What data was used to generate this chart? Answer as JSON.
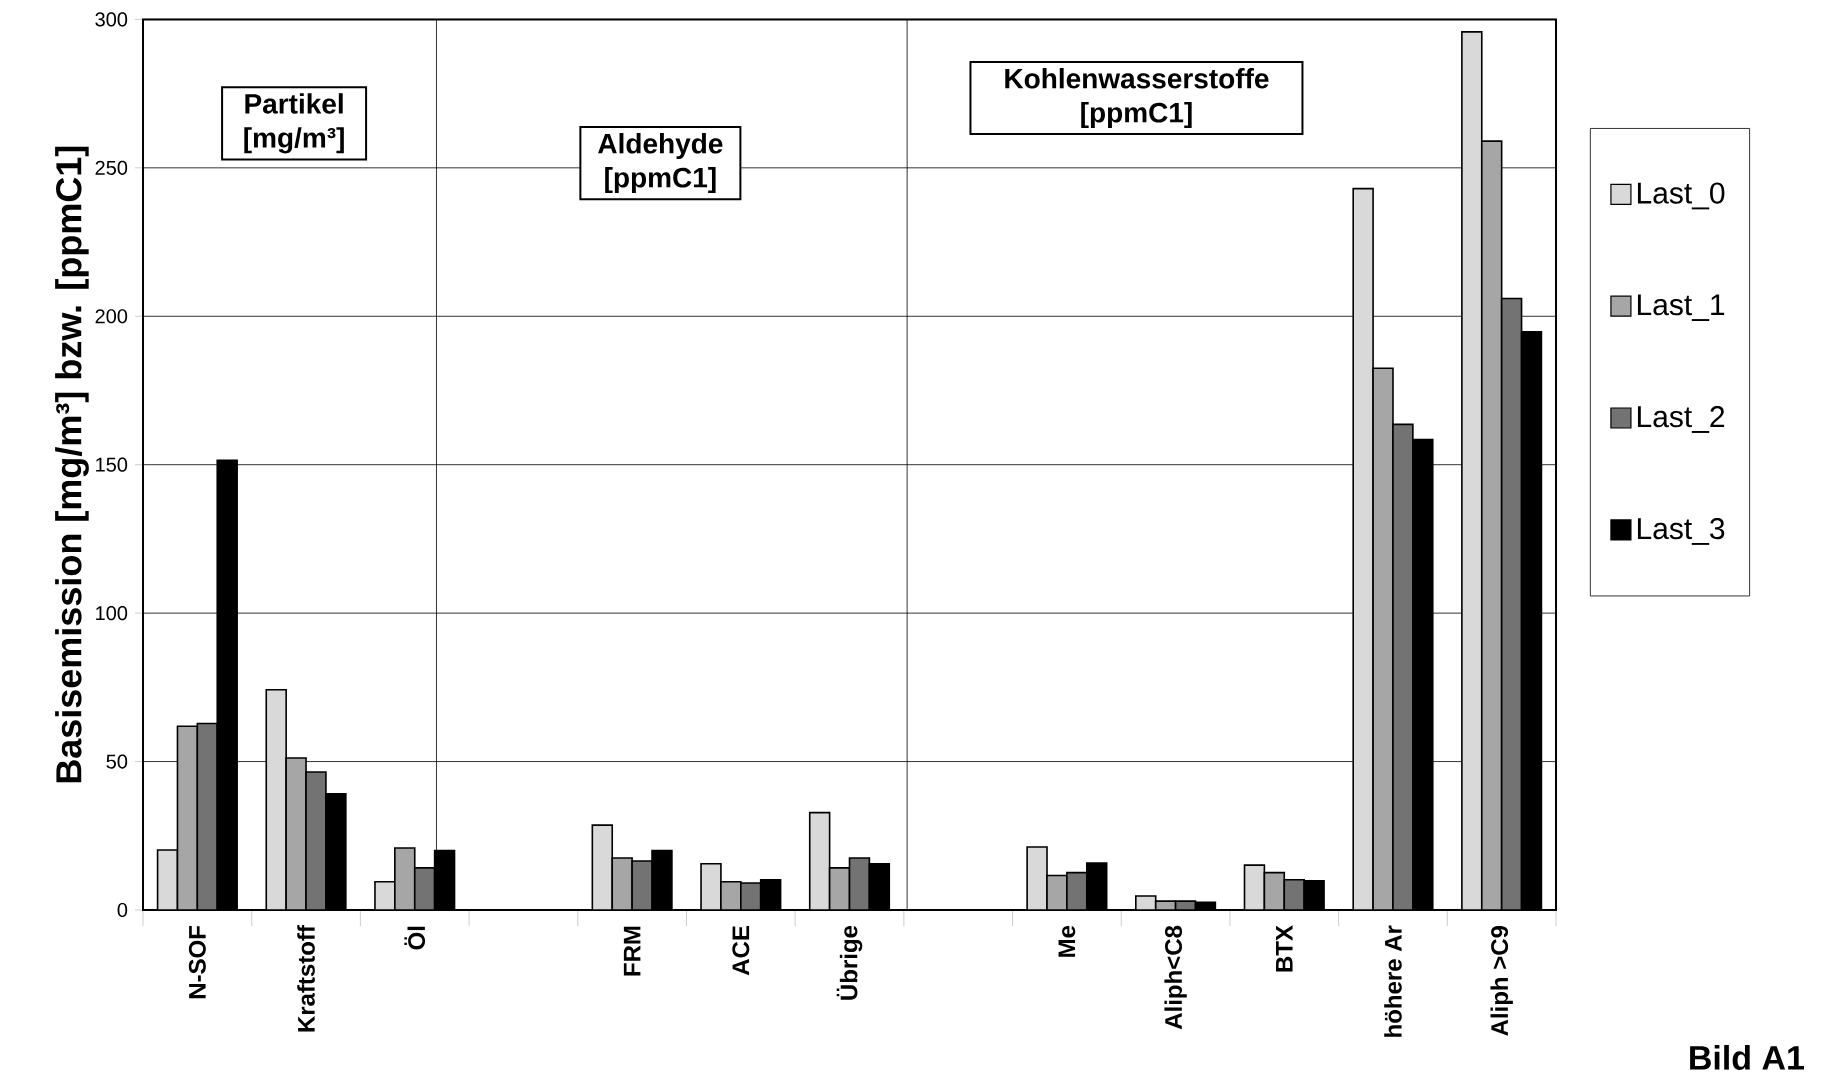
{
  "chart_data": {
    "type": "bar",
    "ylabel": "Basisemission [mg/m³] bzw. [ppmC1]",
    "categories": [
      "N-SOF",
      "Kraftstoff",
      "Öl",
      null,
      "FRM",
      "ACE",
      "Übrige",
      null,
      "Me",
      "Aliph<C8",
      "BTX",
      "höhere Ar",
      "Aliph >C9"
    ],
    "series": [
      {
        "name": "Last_0",
        "color": "#d9d9d9",
        "values": [
          20.2,
          74.2,
          9.5,
          null,
          28.6,
          15.6,
          32.8,
          null,
          21.2,
          4.7,
          15.1,
          243.0,
          295.8
        ]
      },
      {
        "name": "Last_1",
        "color": "#a6a6a6",
        "values": [
          61.9,
          51.2,
          20.9,
          null,
          17.5,
          9.5,
          14.2,
          null,
          11.6,
          3.0,
          12.6,
          182.5,
          259.0
        ]
      },
      {
        "name": "Last_2",
        "color": "#737373",
        "values": [
          62.8,
          46.5,
          14.2,
          null,
          16.5,
          9.1,
          17.5,
          null,
          12.6,
          3.0,
          10.2,
          163.6,
          206.0
        ]
      },
      {
        "name": "Last_3",
        "color": "#000000",
        "values": [
          151.5,
          39.1,
          20.0,
          null,
          20.0,
          10.2,
          15.6,
          null,
          15.8,
          2.6,
          9.8,
          158.5,
          194.8
        ]
      }
    ],
    "ylim": [
      0,
      300
    ],
    "yticks": [
      0,
      50,
      100,
      150,
      200,
      250,
      300
    ],
    "grid": "y",
    "legend": "right",
    "annotations": [
      "Partikel [mg/m³]",
      "Aldehyde [ppmC1]",
      "Kohlenwasserstoffe [ppmC1]",
      "Bild A1"
    ]
  }
}
